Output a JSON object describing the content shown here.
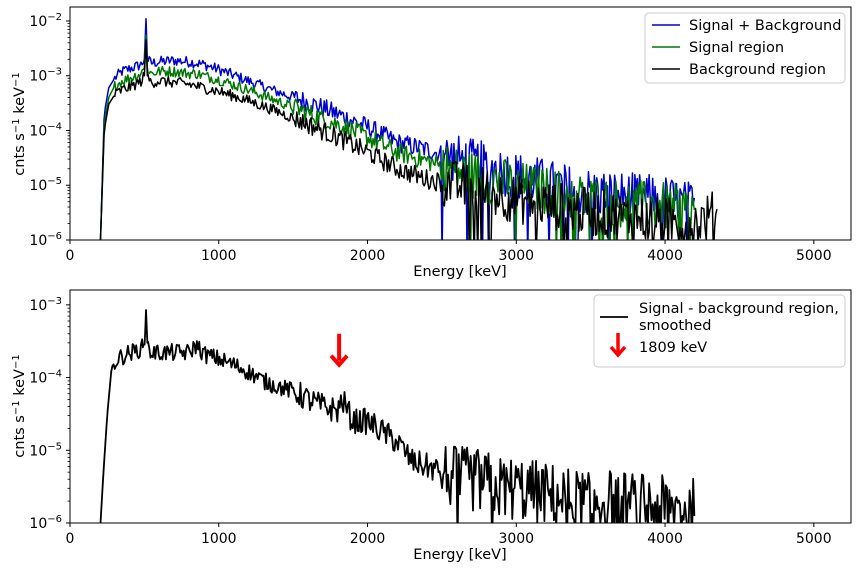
{
  "chart_data": [
    {
      "type": "line",
      "xlabel": "Energy [keV]",
      "ylabel": "cnts s$^{-1}$ keV$^{-1}$",
      "xlim": [
        0,
        5250
      ],
      "ylim": [
        1e-06,
        0.018
      ],
      "yscale": "log",
      "x_ticks": [
        0,
        1000,
        2000,
        3000,
        4000,
        5000
      ],
      "y_ticks": [
        1e-06,
        1e-05,
        0.0001,
        0.001,
        0.01
      ],
      "grid": false,
      "legend_position": "top-right",
      "series": [
        {
          "name": "Signal + Background",
          "color": "#0000cc",
          "x": [
            205,
            230,
            260,
            300,
            350,
            420,
            480,
            500,
            511,
            520,
            545,
            600,
            700,
            800,
            850,
            900,
            1000,
            1200,
            1400,
            1600,
            1800,
            2000,
            2200,
            2400,
            2600,
            2800,
            3000,
            3200,
            3400,
            3600,
            3800,
            4000,
            4200
          ],
          "y": [
            1e-06,
            0.0002,
            0.0006,
            0.0009,
            0.0012,
            0.0014,
            0.0016,
            0.002,
            0.011,
            0.002,
            0.0017,
            0.0018,
            0.0019,
            0.0018,
            0.0017,
            0.0016,
            0.0013,
            0.0008,
            0.0005,
            0.00033,
            0.0002,
            0.000115,
            6e-05,
            4.5e-05,
            3e-05,
            2.2e-05,
            1.5e-05,
            1.1e-05,
            8e-06,
            7e-06,
            6e-06,
            5.5e-06,
            4e-06
          ]
        },
        {
          "name": "Signal region",
          "color": "#007700",
          "x": [
            205,
            230,
            260,
            300,
            350,
            420,
            480,
            500,
            511,
            520,
            545,
            600,
            700,
            800,
            850,
            900,
            1000,
            1200,
            1400,
            1600,
            1800,
            2000,
            2200,
            2400,
            2600,
            2800,
            3000,
            3200,
            3400,
            3600,
            3800,
            4000,
            4200
          ],
          "y": [
            1e-06,
            0.00013,
            0.0004,
            0.00065,
            0.0008,
            0.00095,
            0.0011,
            0.0014,
            0.0055,
            0.0014,
            0.0011,
            0.0012,
            0.0012,
            0.0011,
            0.0011,
            0.001,
            0.00085,
            0.00055,
            0.00034,
            0.00021,
            0.00013,
            7.5e-05,
            4e-05,
            2.8e-05,
            1.8e-05,
            1.3e-05,
            1e-05,
            8e-06,
            6e-06,
            5e-06,
            4.5e-06,
            4e-06,
            3.5e-06
          ]
        },
        {
          "name": "Background region",
          "color": "#000000",
          "x": [
            205,
            230,
            260,
            300,
            350,
            420,
            480,
            500,
            511,
            520,
            545,
            600,
            700,
            800,
            850,
            900,
            1000,
            1200,
            1400,
            1600,
            1800,
            2000,
            2200,
            2400,
            2600,
            2800,
            3000,
            3200,
            3400,
            3600,
            3800,
            4000,
            4200,
            4350
          ],
          "y": [
            1e-06,
            0.0001,
            0.0003,
            0.00045,
            0.00055,
            0.00065,
            0.0008,
            0.001,
            0.0045,
            0.001,
            0.00075,
            0.0008,
            0.00075,
            0.0007,
            0.00065,
            0.0006,
            0.00052,
            0.00035,
            0.00022,
            0.00013,
            7.5e-05,
            4e-05,
            2e-05,
            1.3e-05,
            1e-05,
            8e-06,
            5.5e-06,
            4.5e-06,
            3.5e-06,
            3e-06,
            2.5e-06,
            2.2e-06,
            2e-06,
            3e-06
          ]
        }
      ]
    },
    {
      "type": "line",
      "xlabel": "Energy [keV]",
      "ylabel": "cnts s$^{-1}$ keV$^{-1}$",
      "xlim": [
        0,
        5250
      ],
      "ylim": [
        1e-06,
        0.0016
      ],
      "yscale": "log",
      "x_ticks": [
        0,
        1000,
        2000,
        3000,
        4000,
        5000
      ],
      "y_ticks": [
        1e-06,
        1e-05,
        0.0001,
        0.001
      ],
      "grid": false,
      "legend_position": "top-right",
      "series": [
        {
          "name": "Signal - background region,\n smoothed",
          "color": "#000000",
          "x": [
            205,
            225,
            250,
            280,
            320,
            380,
            440,
            490,
            505,
            511,
            520,
            540,
            600,
            700,
            800,
            850,
            900,
            1000,
            1100,
            1200,
            1300,
            1400,
            1500,
            1600,
            1700,
            1800,
            1830,
            1900,
            2000,
            2100,
            2200,
            2300,
            2400,
            2500,
            2600,
            2700,
            2800,
            2900,
            3000,
            3200,
            3400,
            3600,
            3800,
            4000,
            4200
          ],
          "y": [
            1e-06,
            5e-06,
            3e-05,
            0.00014,
            0.00018,
            0.00021,
            0.00023,
            0.00026,
            0.0004,
            0.00085,
            0.0003,
            0.00022,
            0.00022,
            0.00022,
            0.00022,
            0.00028,
            0.00021,
            0.00018,
            0.00015,
            0.00012,
            9e-05,
            7.5e-05,
            6.5e-05,
            5e-05,
            4e-05,
            3.5e-05,
            5e-05,
            2.5e-05,
            2.5e-05,
            1.8e-05,
            1.3e-05,
            7e-06,
            6e-06,
            5e-06,
            4e-06,
            4e-06,
            3.5e-06,
            3e-06,
            3e-06,
            2.5e-06,
            2e-06,
            2e-06,
            1.8e-06,
            1.6e-06,
            1.5e-06
          ]
        }
      ],
      "annotations": [
        {
          "marker": "down-arrow",
          "x": 1809,
          "y_top": 0.0004,
          "y_bottom": 0.00015,
          "color": "#ff0000",
          "legend_label": "1809 keV"
        }
      ]
    }
  ]
}
